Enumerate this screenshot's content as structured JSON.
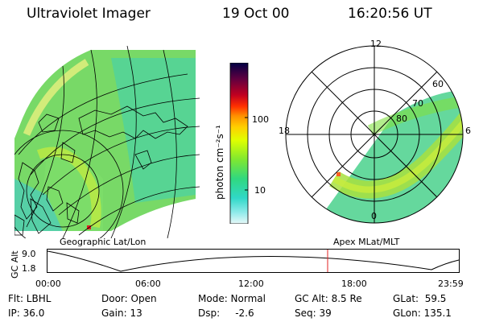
{
  "header": {
    "instrument": "Ultraviolet Imager",
    "date": "19 Oct 00",
    "time": "16:20:56 UT"
  },
  "left_panel": {
    "label": "Geographic Lat/Lon"
  },
  "right_panel": {
    "label": "Apex MLat/MLT",
    "mlt_labels": [
      "12",
      "6",
      "0",
      "18"
    ],
    "lat_labels": [
      "60",
      "70",
      "80"
    ]
  },
  "colorbar": {
    "unit_label": "photon cm⁻²s⁻¹",
    "ticks": [
      "100",
      "10"
    ],
    "colors": [
      "#000044",
      "#600040",
      "#b00020",
      "#e00000",
      "#ff4000",
      "#ff9000",
      "#ffd000",
      "#e0ff00",
      "#a0f000",
      "#60e040",
      "#30d880",
      "#30d8c0",
      "#80e8e8",
      "#d0f4f4"
    ]
  },
  "timeline": {
    "y_label": "GC Alt",
    "y_ticks": [
      "9.0",
      "1.8"
    ],
    "x_ticks": [
      "00:00",
      "06:00",
      "12:00",
      "18:00",
      "23:59"
    ],
    "current_time_fraction": 0.681
  },
  "info": {
    "flt": "Flt: LBHL",
    "ip": "IP: 36.0",
    "door": "Door: Open",
    "gain": "Gain: 13",
    "mode": "Mode: Normal",
    "dsp": "Dsp:     -2.6",
    "gcalt": "GC Alt: 8.5 Re",
    "seq": "Seq: 39",
    "glat": "GLat:  59.5",
    "glon": "GLon: 135.1"
  }
}
